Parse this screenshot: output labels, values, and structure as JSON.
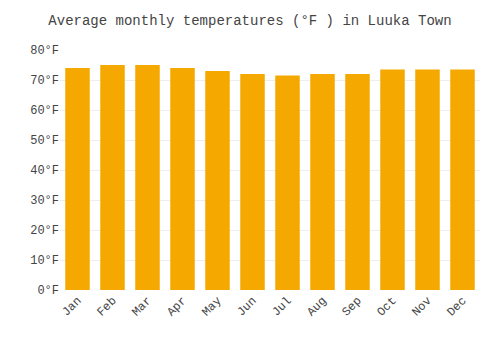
{
  "chart_data": {
    "type": "bar",
    "title": "Average monthly temperatures (°F ) in Luuka Town",
    "categories": [
      "Jan",
      "Feb",
      "Mar",
      "Apr",
      "May",
      "Jun",
      "Jul",
      "Aug",
      "Sep",
      "Oct",
      "Nov",
      "Dec"
    ],
    "values": [
      74.0,
      75.0,
      75.0,
      74.0,
      73.0,
      72.0,
      71.5,
      72.0,
      72.0,
      73.5,
      73.5,
      73.5
    ],
    "color": "#F5A800",
    "ylim": [
      0,
      80
    ],
    "yticks": [
      {
        "value": 0,
        "label": "0°F"
      },
      {
        "value": 10,
        "label": "10°F"
      },
      {
        "value": 20,
        "label": "20°F"
      },
      {
        "value": 30,
        "label": "30°F"
      },
      {
        "value": 40,
        "label": "40°F"
      },
      {
        "value": 50,
        "label": "50°F"
      },
      {
        "value": 60,
        "label": "60°F"
      },
      {
        "value": 70,
        "label": "70°F"
      },
      {
        "value": 80,
        "label": "80°F"
      }
    ],
    "grid": true
  }
}
